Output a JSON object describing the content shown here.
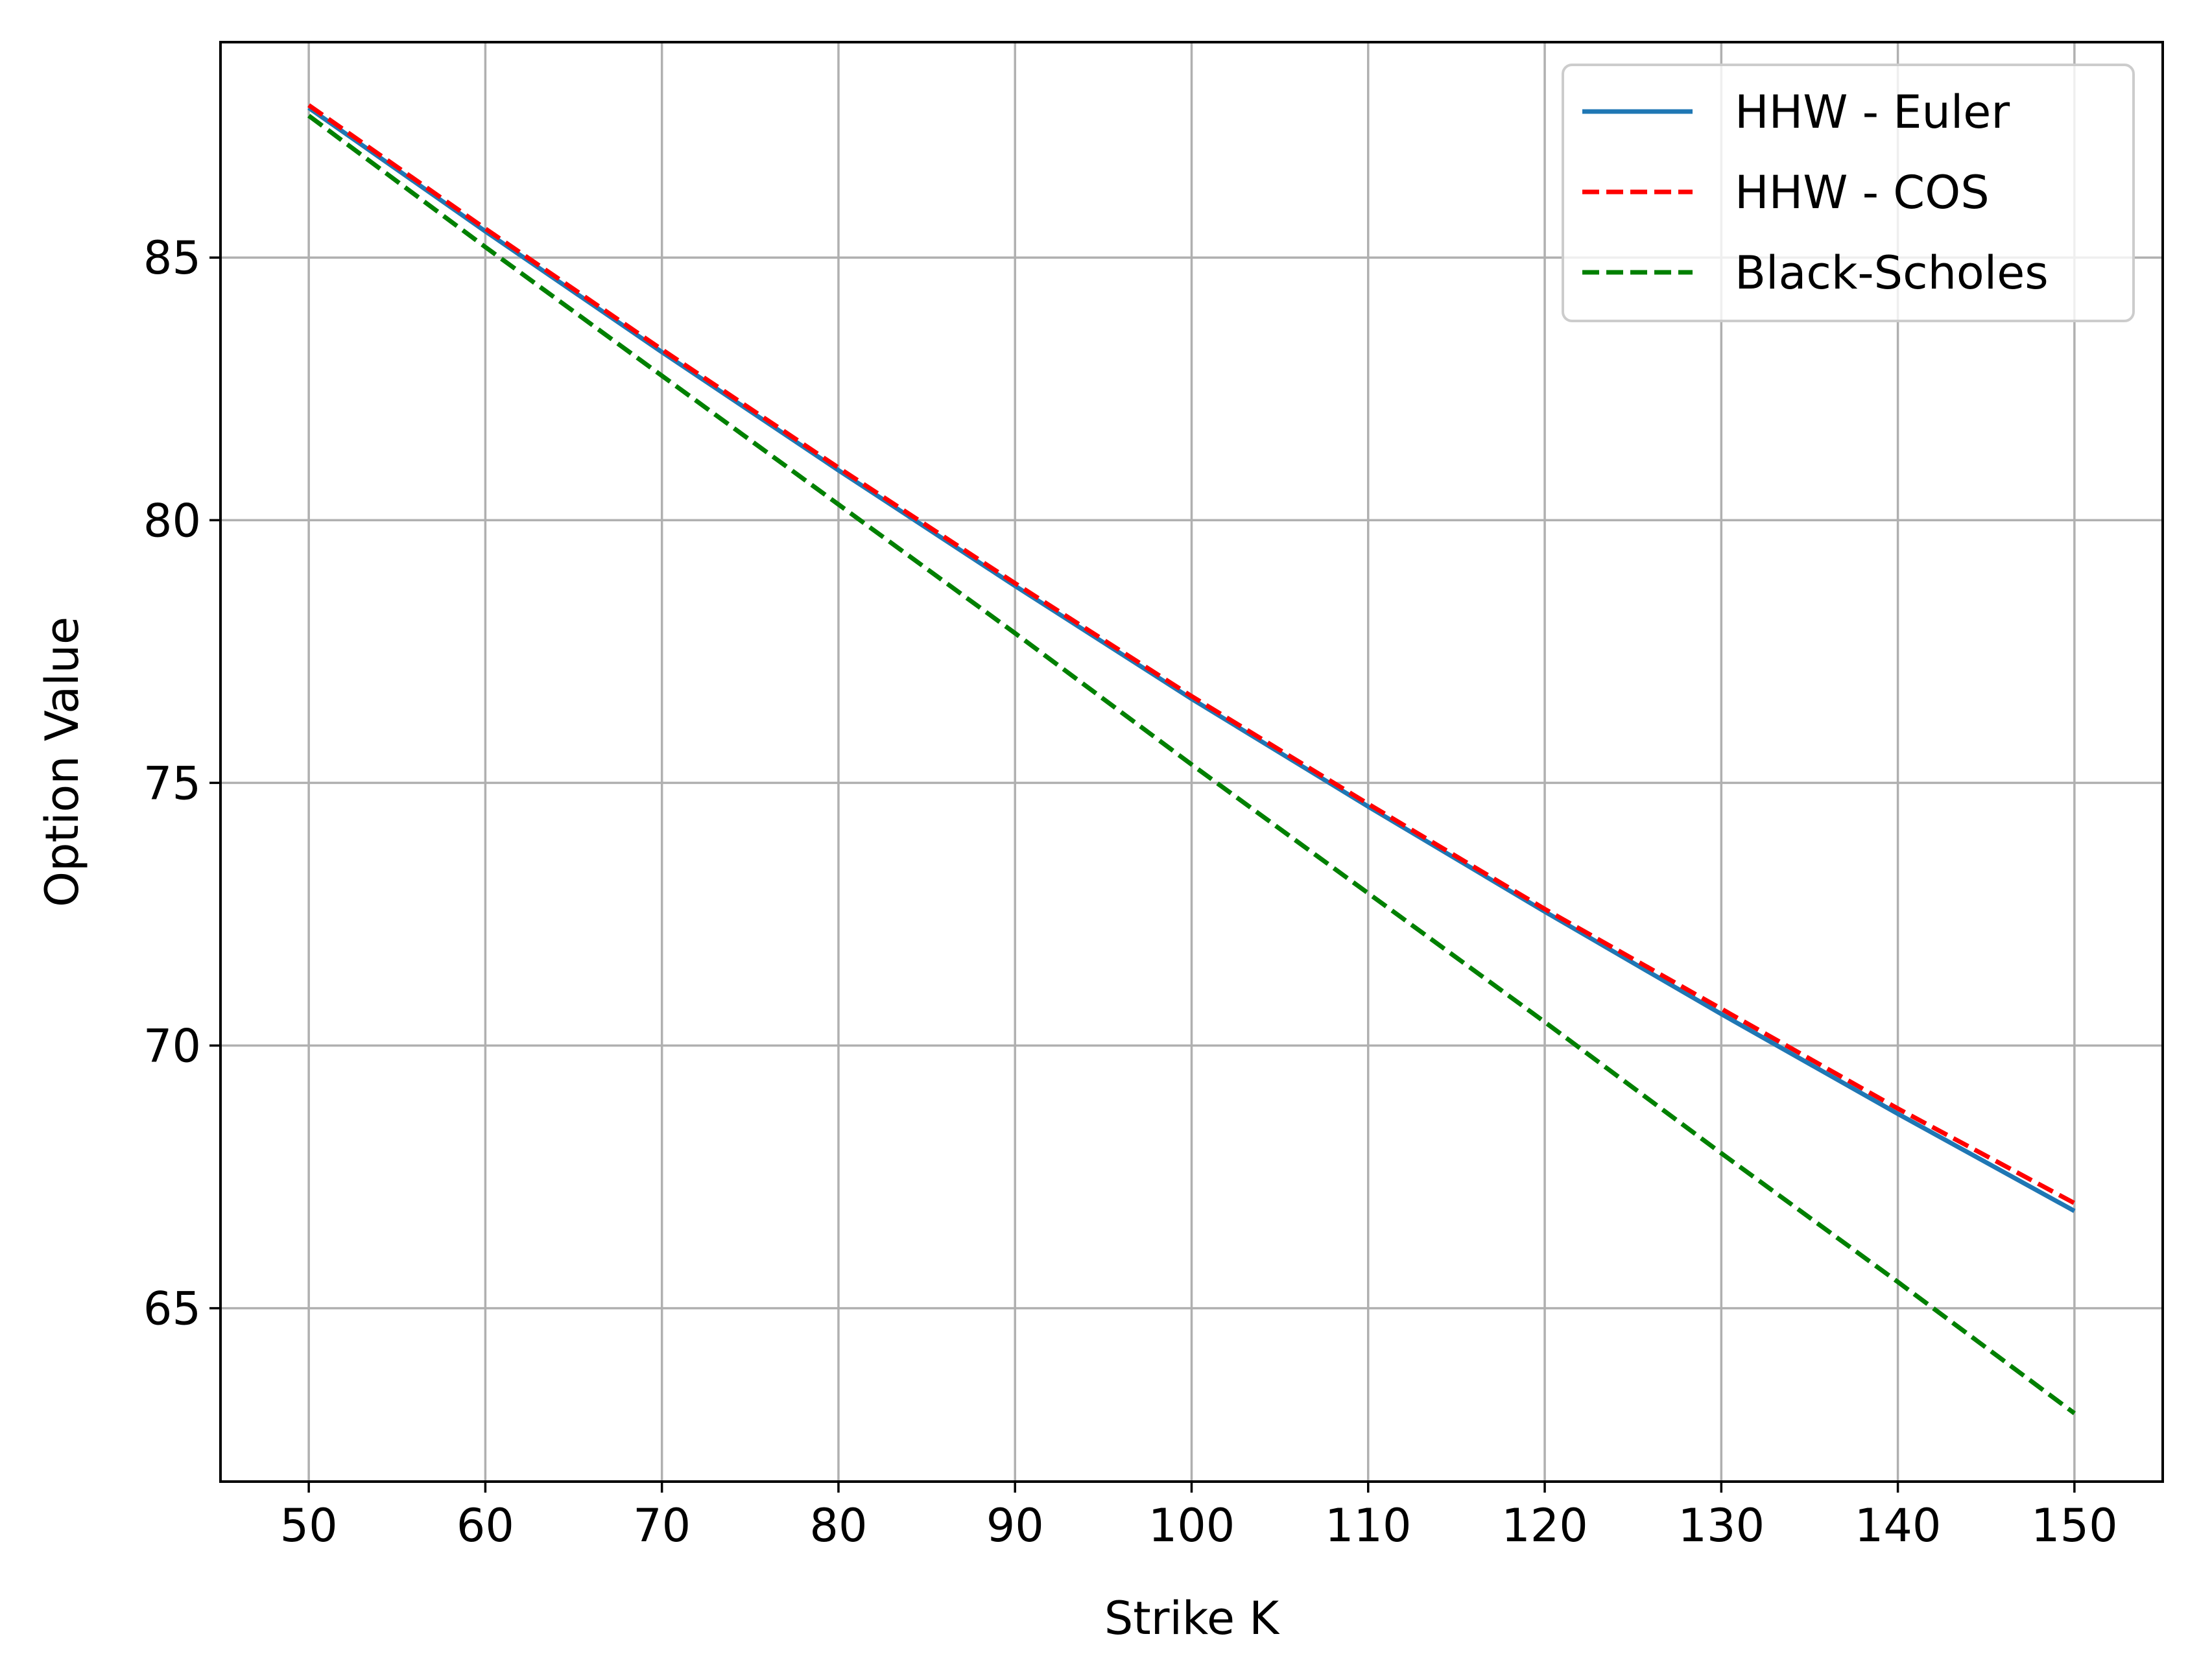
{
  "chart_data": {
    "type": "line",
    "title": "",
    "xlabel": "Strike K",
    "ylabel": "Option Value",
    "xlim": [
      45,
      155
    ],
    "ylim": [
      61.7,
      89.1
    ],
    "xticks": [
      50,
      60,
      70,
      80,
      90,
      100,
      110,
      120,
      130,
      140,
      150
    ],
    "yticks": [
      65,
      70,
      75,
      80,
      85
    ],
    "grid": true,
    "legend_position": "top-right",
    "series": [
      {
        "name": "HHW - Euler",
        "color": "#1f77b4",
        "dash": "solid",
        "x": [
          50,
          60,
          70,
          80,
          90,
          100,
          110,
          120,
          130,
          140,
          150
        ],
        "y": [
          87.85,
          85.5,
          83.2,
          80.95,
          78.75,
          76.6,
          74.55,
          72.55,
          70.6,
          68.7,
          66.85
        ]
      },
      {
        "name": "HHW - COS",
        "color": "#ff0000",
        "dash": "dashed",
        "x": [
          50,
          60,
          70,
          80,
          90,
          100,
          110,
          120,
          130,
          140,
          150
        ],
        "y": [
          87.9,
          85.55,
          83.25,
          81.0,
          78.8,
          76.65,
          74.6,
          72.6,
          70.7,
          68.8,
          67.0
        ]
      },
      {
        "name": "Black-Scholes",
        "color": "#008000",
        "dash": "dashed",
        "x": [
          50,
          60,
          70,
          80,
          90,
          100,
          110,
          120,
          130,
          140,
          150
        ],
        "y": [
          87.7,
          85.2,
          82.75,
          80.3,
          77.85,
          75.35,
          72.9,
          70.45,
          67.95,
          65.5,
          63.0
        ]
      }
    ]
  }
}
